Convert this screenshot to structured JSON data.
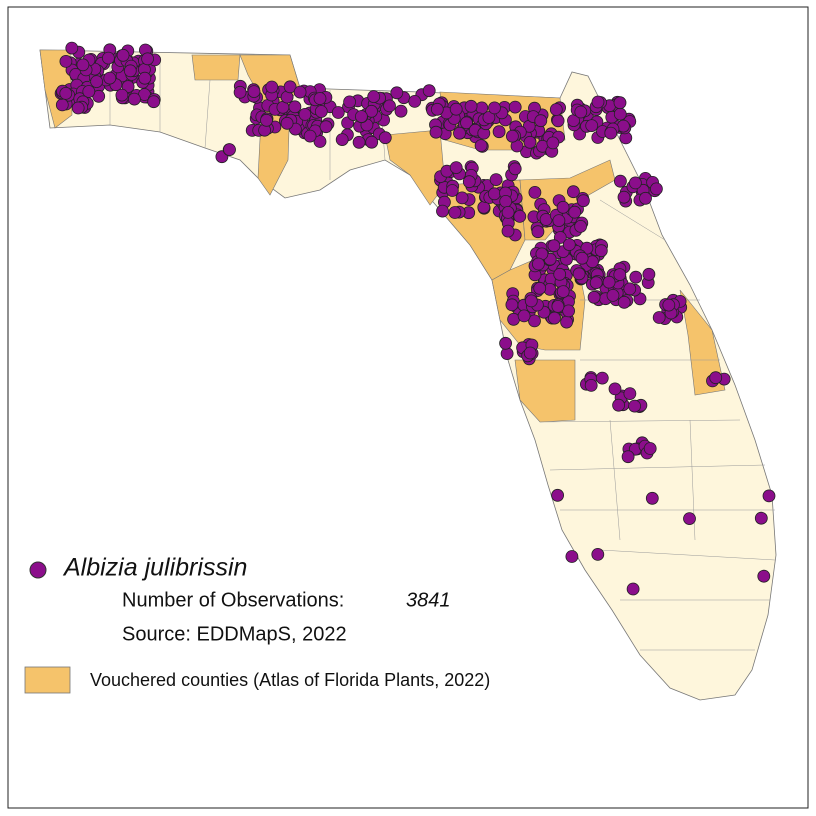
{
  "legend": {
    "species": "Albizia julibrissin",
    "observations_label": "Number of Observations:",
    "observations": 3841,
    "source": "Source: EDDMapS, 2022",
    "vouchered": "Vouchered counties (Atlas of Florida Plants, 2022)"
  }
}
